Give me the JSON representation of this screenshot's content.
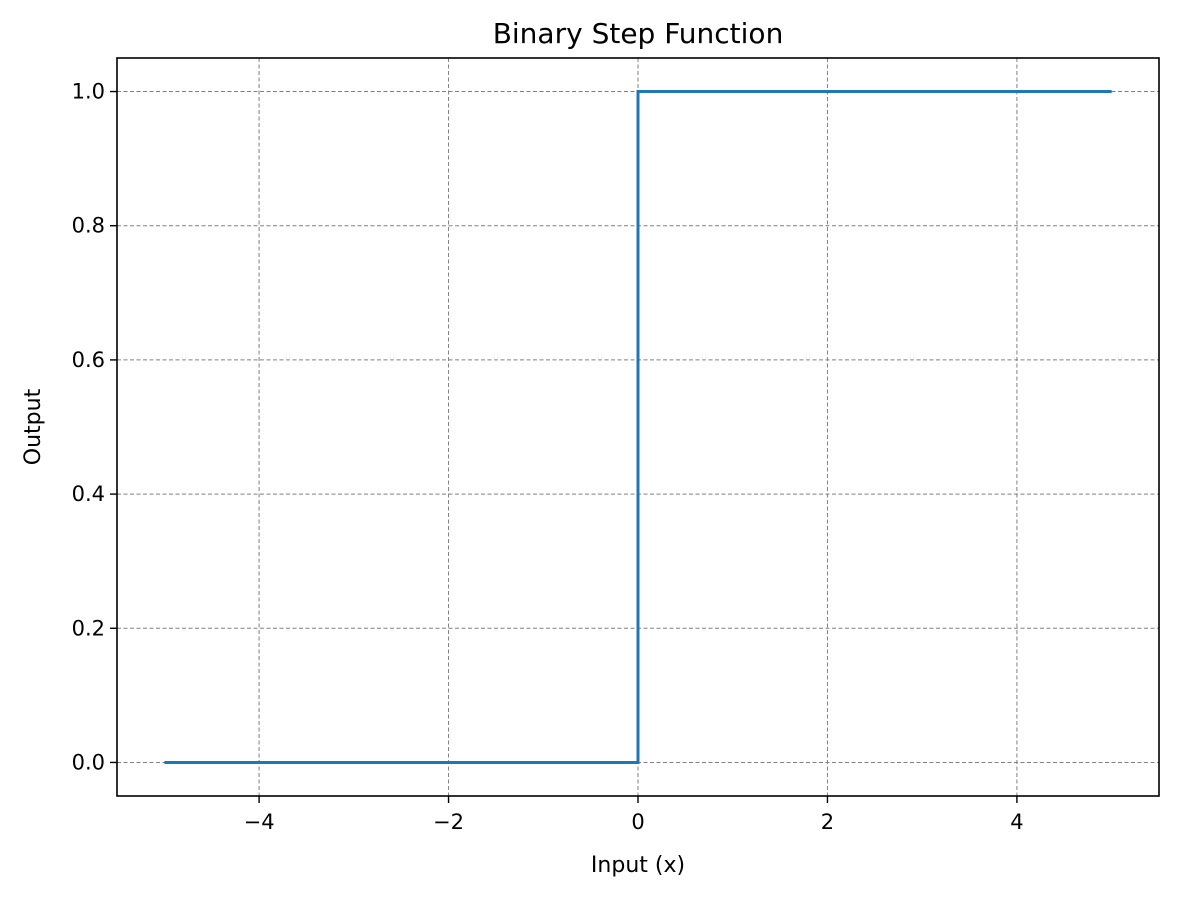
{
  "chart_data": {
    "type": "line",
    "title": "Binary Step Function",
    "xlabel": "Input (x)",
    "ylabel": "Output",
    "xlim": [
      -5.5,
      5.5
    ],
    "ylim": [
      -0.05,
      1.05
    ],
    "x_ticks": [
      -4,
      -2,
      0,
      2,
      4
    ],
    "x_tick_labels": [
      "−4",
      "−2",
      "0",
      "2",
      "4"
    ],
    "y_ticks": [
      0.0,
      0.2,
      0.4,
      0.6,
      0.8,
      1.0
    ],
    "y_tick_labels": [
      "0.0",
      "0.2",
      "0.4",
      "0.6",
      "0.8",
      "1.0"
    ],
    "grid": true,
    "grid_style": "dashed",
    "series": [
      {
        "color": "#1f77b4",
        "x": [
          -5,
          0,
          0,
          5
        ],
        "y": [
          0,
          0,
          1,
          1
        ]
      }
    ]
  },
  "colors": {
    "line": "#1f77b4",
    "grid": "#808080",
    "axes": "#000000"
  }
}
